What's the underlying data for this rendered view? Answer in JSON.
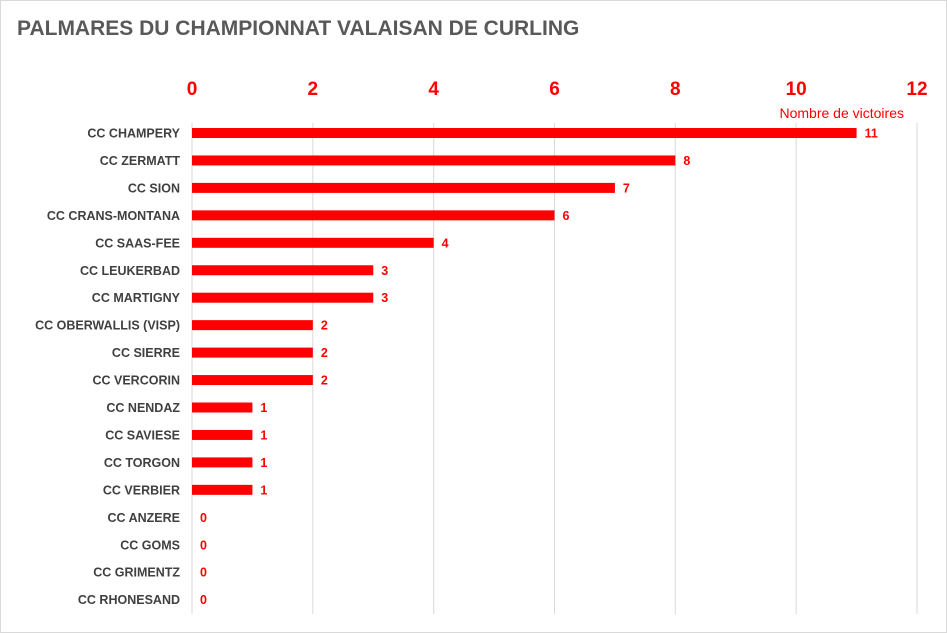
{
  "chart_data": {
    "type": "bar",
    "orientation": "horizontal",
    "title": "PALMARES DU CHAMPIONNAT VALAISAN DE CURLING",
    "xlabel": "Nombre de victoires",
    "ylabel": "",
    "xlim": [
      0,
      12
    ],
    "xticks": [
      0,
      2,
      4,
      6,
      8,
      10,
      12
    ],
    "x_axis_position": "top",
    "grid": true,
    "bar_color": "#ff0000",
    "categories": [
      "CC CHAMPERY",
      "CC ZERMATT",
      "CC SION",
      "CC CRANS-MONTANA",
      "CC SAAS-FEE",
      "CC LEUKERBAD",
      "CC MARTIGNY",
      "CC OBERWALLIS (VISP)",
      "CC SIERRE",
      "CC VERCORIN",
      "CC NENDAZ",
      "CC SAVIESE",
      "CC TORGON",
      "CC VERBIER",
      "CC ANZERE",
      "CC GOMS",
      "CC GRIMENTZ",
      "CC RHONESAND"
    ],
    "values": [
      11,
      8,
      7,
      6,
      4,
      3,
      3,
      2,
      2,
      2,
      1,
      1,
      1,
      1,
      0,
      0,
      0,
      0
    ]
  }
}
